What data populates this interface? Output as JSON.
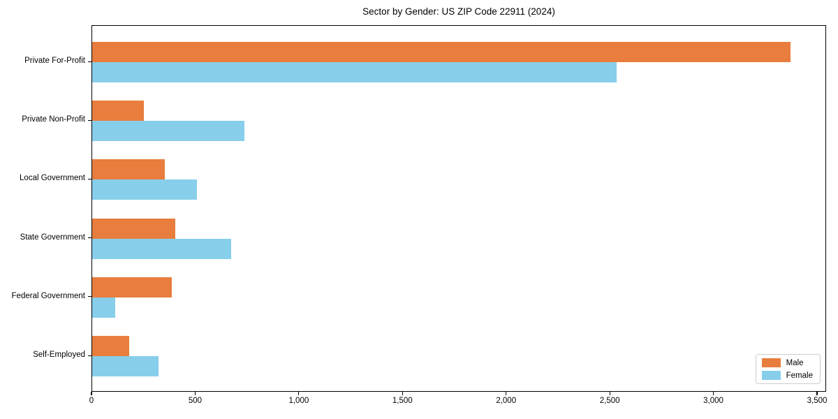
{
  "figure": {
    "background": "#ffffff",
    "axis_color": "#000000",
    "legend_border_color": "#cccccc"
  },
  "chart_data": {
    "type": "bar",
    "orientation": "horizontal",
    "title": "Sector by Gender: US ZIP Code 22911 (2024)",
    "xlabel": "",
    "ylabel": "",
    "grid": false,
    "legend_position": "lower right",
    "xlim": [
      0,
      3500
    ],
    "categories": [
      "Private For-Profit",
      "Private Non-Profit",
      "Local Government",
      "State Government",
      "Federal Government",
      "Self-Employed"
    ],
    "series": [
      {
        "name": "Male",
        "color": "#e87d3d",
        "values": [
          3370,
          250,
          350,
          400,
          385,
          180
        ]
      },
      {
        "name": "Female",
        "color": "#87ceeb",
        "values": [
          2530,
          735,
          505,
          670,
          110,
          320
        ]
      }
    ],
    "x_ticks": [
      {
        "value": 0,
        "label": "0"
      },
      {
        "value": 500,
        "label": "500"
      },
      {
        "value": 1000,
        "label": "1,000"
      },
      {
        "value": 1500,
        "label": "1,500"
      },
      {
        "value": 2000,
        "label": "2,000"
      },
      {
        "value": 2500,
        "label": "2,500"
      },
      {
        "value": 3000,
        "label": "3,000"
      },
      {
        "value": 3500,
        "label": "3,500"
      }
    ]
  }
}
